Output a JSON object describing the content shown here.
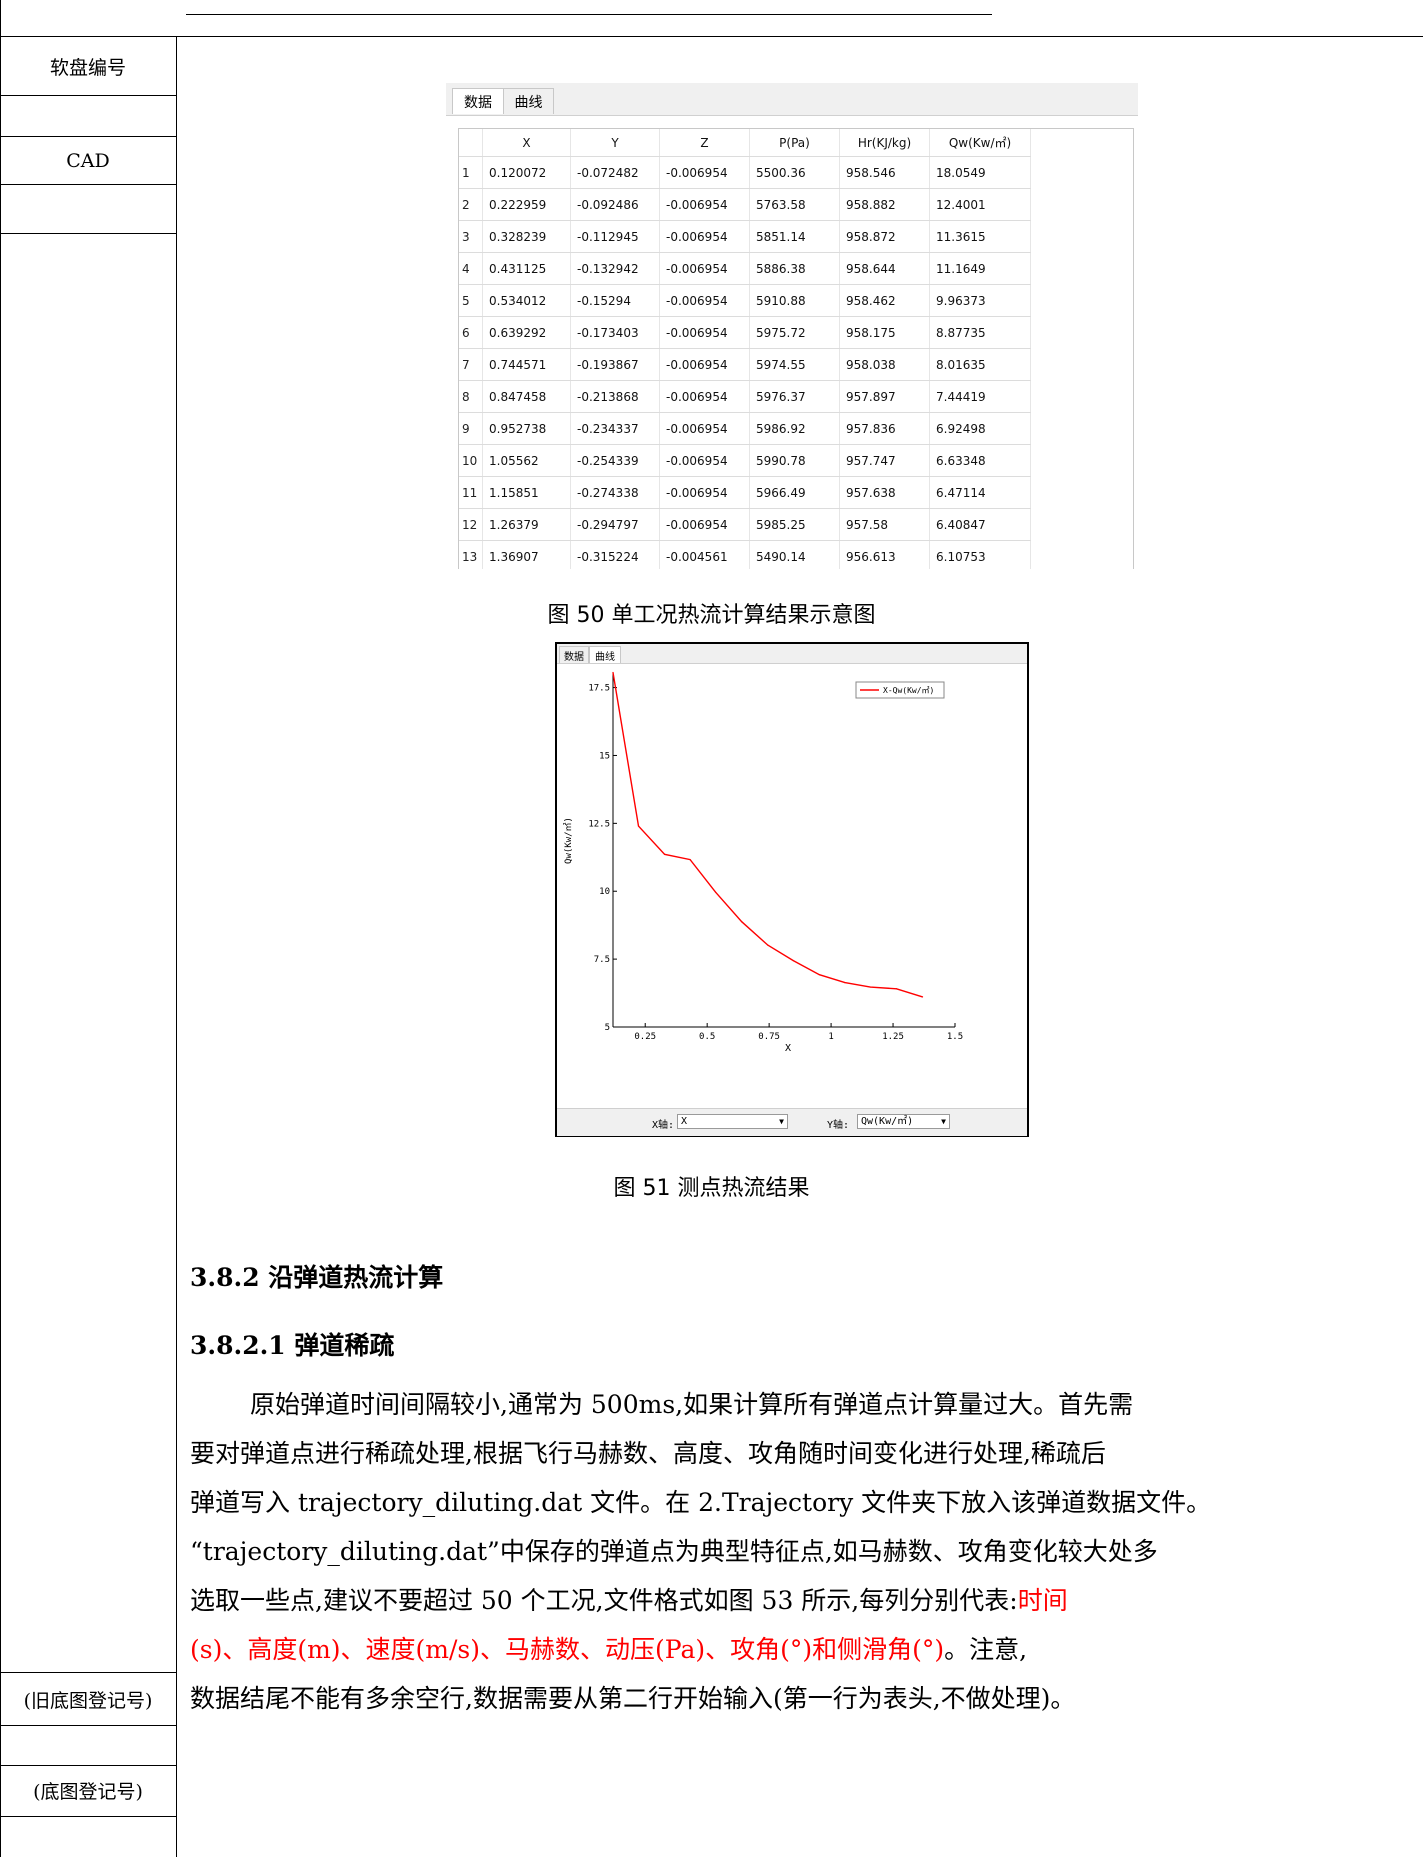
{
  "sidebar": {
    "disk_label": "软盘编号",
    "cad_label": "CAD",
    "old_reg_label": "(旧底图登记号)",
    "reg_label": "(底图登记号)"
  },
  "table_panel": {
    "tabs": [
      "数据",
      "曲线"
    ],
    "columns": [
      "X",
      "Y",
      "Z",
      "P(Pa)",
      "Hr(KJ/kg)",
      "Qw(Kw/㎡)"
    ],
    "rows": [
      [
        "1",
        "0.120072",
        "-0.072482",
        "-0.006954",
        "5500.36",
        "958.546",
        "18.0549"
      ],
      [
        "2",
        "0.222959",
        "-0.092486",
        "-0.006954",
        "5763.58",
        "958.882",
        "12.4001"
      ],
      [
        "3",
        "0.328239",
        "-0.112945",
        "-0.006954",
        "5851.14",
        "958.872",
        "11.3615"
      ],
      [
        "4",
        "0.431125",
        "-0.132942",
        "-0.006954",
        "5886.38",
        "958.644",
        "11.1649"
      ],
      [
        "5",
        "0.534012",
        "-0.15294",
        "-0.006954",
        "5910.88",
        "958.462",
        "9.96373"
      ],
      [
        "6",
        "0.639292",
        "-0.173403",
        "-0.006954",
        "5975.72",
        "958.175",
        "8.87735"
      ],
      [
        "7",
        "0.744571",
        "-0.193867",
        "-0.006954",
        "5974.55",
        "958.038",
        "8.01635"
      ],
      [
        "8",
        "0.847458",
        "-0.213868",
        "-0.006954",
        "5976.37",
        "957.897",
        "7.44419"
      ],
      [
        "9",
        "0.952738",
        "-0.234337",
        "-0.006954",
        "5986.92",
        "957.836",
        "6.92498"
      ],
      [
        "10",
        "1.05562",
        "-0.254339",
        "-0.006954",
        "5990.78",
        "957.747",
        "6.63348"
      ],
      [
        "11",
        "1.15851",
        "-0.274338",
        "-0.006954",
        "5966.49",
        "957.638",
        "6.47114"
      ],
      [
        "12",
        "1.26379",
        "-0.294797",
        "-0.006954",
        "5985.25",
        "957.58",
        "6.40847"
      ],
      [
        "13",
        "1.36907",
        "-0.315224",
        "-0.004561",
        "5490.14",
        "956.613",
        "6.10753"
      ]
    ],
    "caption": "图 50 单工况热流计算结果示意图"
  },
  "chart_panel": {
    "tabs": [
      "数据",
      "曲线"
    ],
    "x_axis_label": "X轴:",
    "x_axis_value": "X",
    "y_axis_label": "Y轴:",
    "y_axis_value": "Qw(Kw/㎡)",
    "caption": "图 51 测点热流结果"
  },
  "chart_data": {
    "type": "line",
    "xlabel": "X",
    "ylabel": "Qw(Kw/㎡)",
    "xlim": [
      0.12,
      1.5
    ],
    "ylim": [
      5,
      18
    ],
    "x_ticks": [
      "0.25",
      "0.5",
      "0.75",
      "1",
      "1.25",
      "1.5"
    ],
    "y_ticks": [
      "5",
      "7.5",
      "10",
      "12.5",
      "15",
      "17.5"
    ],
    "series": [
      {
        "name": "X-Qw(Kw/㎡)",
        "color": "#ff0000",
        "x": [
          0.120072,
          0.222959,
          0.328239,
          0.431125,
          0.534012,
          0.639292,
          0.744571,
          0.847458,
          0.952738,
          1.05562,
          1.15851,
          1.26379,
          1.36907
        ],
        "y": [
          18.0549,
          12.4001,
          11.3615,
          11.1649,
          9.96373,
          8.87735,
          8.01635,
          7.44419,
          6.92498,
          6.63348,
          6.47114,
          6.40847,
          6.10753
        ]
      }
    ],
    "legend": "top-right"
  },
  "section": {
    "heading_382": "3.8.2 沿弹道热流计算",
    "heading_3821": "3.8.2.1 弹道稀疏",
    "para_1": "原始弹道时间间隔较小,通常为 500ms,如果计算所有弹道点计算量过大。首先需",
    "para_2": "要对弹道点进行稀疏处理,根据飞行马赫数、高度、攻角随时间变化进行处理,稀疏后",
    "para_3": "弹道写入 trajectory_diluting.dat 文件。在 2.Trajectory 文件夹下放入该弹道数据文件。",
    "para_4": "“trajectory_diluting.dat”中保存的弹道点为典型特征点,如马赫数、攻角变化较大处多",
    "para_5_black": "选取一些点,建议不要超过 50 个工况,文件格式如图 53 所示,每列分别代表:",
    "para_5_red": "时间",
    "para_6_red": "(s)、高度(m)、速度(m/s)、马赫数、动压(Pa)、攻角(°)和侧滑角(°)",
    "para_6_black": "。注意,",
    "para_7": "数据结尾不能有多余空行,数据需要从第二行开始输入(第一行为表头,不做处理)。"
  }
}
